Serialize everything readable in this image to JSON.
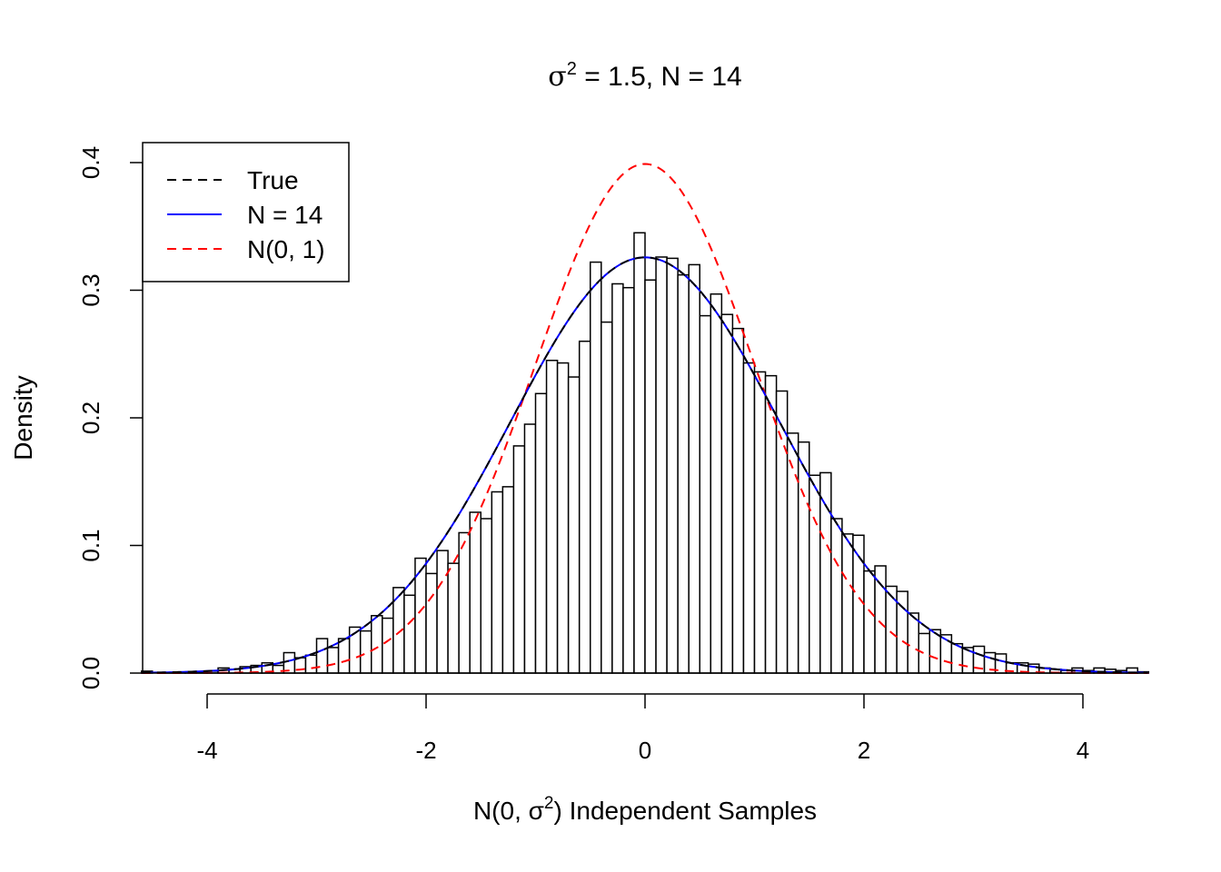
{
  "chart_data": {
    "type": "bar",
    "title": {
      "prefix": "σ",
      "sup": "2",
      "suffix": " = 1.5, N = 14"
    },
    "xlabel": {
      "prefix": "N(0, σ",
      "sup": "2",
      "suffix": ") Independent Samples"
    },
    "ylabel": "Density",
    "xlim": [
      -4.6,
      4.6
    ],
    "ylim": [
      0,
      0.4
    ],
    "xticks": [
      -4,
      -2,
      0,
      2,
      4
    ],
    "xtick_labels": [
      "-4",
      "-2",
      "0",
      "2",
      "4"
    ],
    "yticks": [
      0.0,
      0.1,
      0.2,
      0.3,
      0.4
    ],
    "ytick_labels": [
      "0.0",
      "0.1",
      "0.2",
      "0.3",
      "0.4"
    ],
    "grid": false,
    "legend_position": "top-left",
    "histogram": {
      "bin_width": 0.1,
      "bin_start": -4.6,
      "values": [
        0.0015,
        0.0,
        0.0005,
        0.0005,
        0.001,
        0.001,
        0.0015,
        0.004,
        0.003,
        0.005,
        0.006,
        0.008,
        0.006,
        0.016,
        0.012,
        0.014,
        0.027,
        0.02,
        0.027,
        0.036,
        0.033,
        0.045,
        0.043,
        0.067,
        0.061,
        0.09,
        0.078,
        0.096,
        0.086,
        0.11,
        0.126,
        0.121,
        0.142,
        0.146,
        0.178,
        0.195,
        0.219,
        0.245,
        0.243,
        0.232,
        0.26,
        0.322,
        0.275,
        0.305,
        0.302,
        0.345,
        0.308,
        0.326,
        0.325,
        0.312,
        0.32,
        0.28,
        0.297,
        0.281,
        0.27,
        0.243,
        0.236,
        0.233,
        0.221,
        0.188,
        0.181,
        0.155,
        0.157,
        0.121,
        0.109,
        0.108,
        0.08,
        0.084,
        0.068,
        0.064,
        0.047,
        0.031,
        0.034,
        0.03,
        0.023,
        0.02,
        0.021,
        0.016,
        0.015,
        0.008,
        0.008,
        0.007,
        0.004,
        0.003,
        0.002,
        0.004,
        0.002,
        0.004,
        0.003,
        0.002,
        0.004,
        0.001
      ]
    },
    "series": [
      {
        "name": "True",
        "type": "density",
        "mean": 0,
        "variance": 1.5,
        "color": "#000000",
        "style": "dashed"
      },
      {
        "name": "N = 14",
        "type": "density",
        "mean": 0,
        "variance": 1.5,
        "color": "#0000ff",
        "style": "solid"
      },
      {
        "name": "N(0, 1)",
        "type": "density",
        "mean": 0,
        "variance": 1.0,
        "color": "#ff0000",
        "style": "dashed"
      }
    ],
    "legend": [
      {
        "label": "True",
        "color": "#000000",
        "style": "dashed"
      },
      {
        "label": "N = 14",
        "color": "#0000ff",
        "style": "solid"
      },
      {
        "label": "N(0, 1)",
        "color": "#ff0000",
        "style": "dashed"
      }
    ]
  }
}
